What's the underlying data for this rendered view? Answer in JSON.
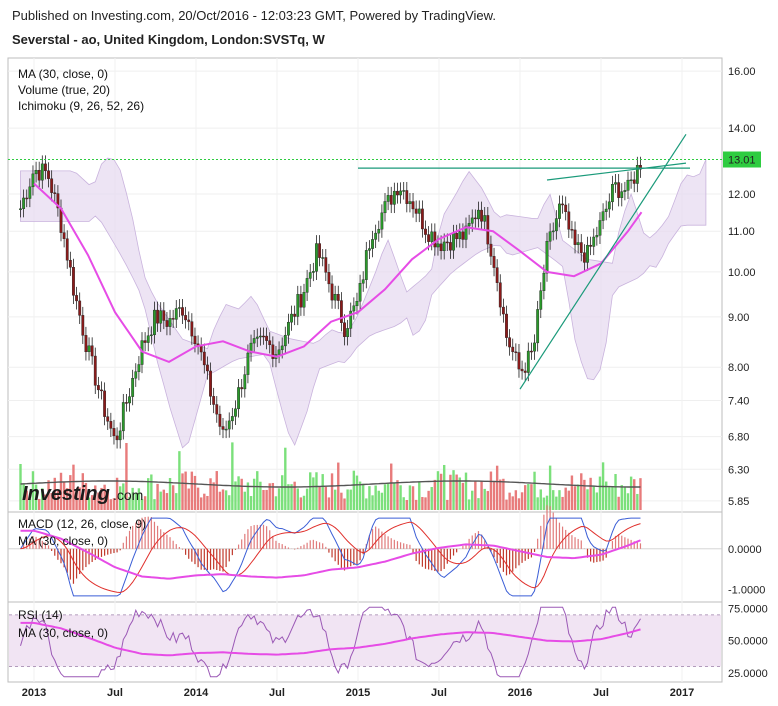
{
  "header": {
    "published": "Published on Investing.com, 20/Oct/2016 - 12:03:23 GMT, Powered by TradingView.",
    "title": "Severstal - ao, United Kingdom, London:SVSTq, W"
  },
  "brand": {
    "name": "Investing",
    "suffix": ".com"
  },
  "chart_data": {
    "type": "line",
    "instrument": "Severstal - ao, United Kingdom, London:SVSTq, W",
    "main_legend": [
      "MA (30, close, 0)",
      "Volume (true, 20)",
      "Ichimoku (9, 26, 52, 26)"
    ],
    "price_axis": {
      "ticks": [
        "16.00",
        "14.00",
        "12.00",
        "11.00",
        "10.00",
        "9.00",
        "8.00",
        "7.40",
        "6.80",
        "6.30",
        "5.85"
      ],
      "ylim": [
        5.7,
        16.5
      ],
      "scale": "log"
    },
    "last_price": {
      "label": "13.01",
      "value": 13.01,
      "color": "#2ecc40"
    },
    "x_axis": {
      "ticks": [
        "2013",
        "Jul",
        "2014",
        "Jul",
        "2015",
        "Jul",
        "2016",
        "Jul",
        "2017"
      ]
    },
    "price_close": [
      {
        "x": "2012-12",
        "y": 11.6
      },
      {
        "x": "2013-01",
        "y": 12.7
      },
      {
        "x": "2013-02",
        "y": 12.6
      },
      {
        "x": "2013-03",
        "y": 11.2
      },
      {
        "x": "2013-04",
        "y": 9.5
      },
      {
        "x": "2013-05",
        "y": 8.3
      },
      {
        "x": "2013-06",
        "y": 7.4
      },
      {
        "x": "2013-07",
        "y": 6.7
      },
      {
        "x": "2013-08",
        "y": 7.5
      },
      {
        "x": "2013-09",
        "y": 8.4
      },
      {
        "x": "2013-10",
        "y": 9.0
      },
      {
        "x": "2013-11",
        "y": 8.9
      },
      {
        "x": "2013-12",
        "y": 9.2
      },
      {
        "x": "2014-01",
        "y": 8.6
      },
      {
        "x": "2014-02",
        "y": 7.6
      },
      {
        "x": "2014-03",
        "y": 6.8
      },
      {
        "x": "2014-04",
        "y": 7.4
      },
      {
        "x": "2014-05",
        "y": 8.3
      },
      {
        "x": "2014-06",
        "y": 8.5
      },
      {
        "x": "2014-07",
        "y": 8.3
      },
      {
        "x": "2014-08",
        "y": 8.9
      },
      {
        "x": "2014-09",
        "y": 9.6
      },
      {
        "x": "2014-10",
        "y": 10.5
      },
      {
        "x": "2014-11",
        "y": 9.6
      },
      {
        "x": "2014-12",
        "y": 8.8
      },
      {
        "x": "2015-01",
        "y": 9.3
      },
      {
        "x": "2015-02",
        "y": 11.0
      },
      {
        "x": "2015-03",
        "y": 11.6
      },
      {
        "x": "2015-04",
        "y": 12.3
      },
      {
        "x": "2015-05",
        "y": 11.8
      },
      {
        "x": "2015-06",
        "y": 11.1
      },
      {
        "x": "2015-07",
        "y": 10.7
      },
      {
        "x": "2015-08",
        "y": 10.8
      },
      {
        "x": "2015-09",
        "y": 10.9
      },
      {
        "x": "2015-10",
        "y": 11.7
      },
      {
        "x": "2015-11",
        "y": 10.4
      },
      {
        "x": "2015-12",
        "y": 8.6
      },
      {
        "x": "2016-01",
        "y": 7.9
      },
      {
        "x": "2016-02",
        "y": 8.3
      },
      {
        "x": "2016-03",
        "y": 10.5
      },
      {
        "x": "2016-04",
        "y": 11.7
      },
      {
        "x": "2016-05",
        "y": 10.6
      },
      {
        "x": "2016-06",
        "y": 10.4
      },
      {
        "x": "2016-07",
        "y": 11.2
      },
      {
        "x": "2016-08",
        "y": 12.2
      },
      {
        "x": "2016-09",
        "y": 12.1
      },
      {
        "x": "2016-10",
        "y": 13.0
      }
    ],
    "ma30": [
      {
        "x": "2013-01",
        "y": 12.3
      },
      {
        "x": "2013-03",
        "y": 11.6
      },
      {
        "x": "2013-05",
        "y": 10.4
      },
      {
        "x": "2013-07",
        "y": 9.1
      },
      {
        "x": "2013-09",
        "y": 8.3
      },
      {
        "x": "2013-11",
        "y": 8.1
      },
      {
        "x": "2014-01",
        "y": 8.4
      },
      {
        "x": "2014-03",
        "y": 8.5
      },
      {
        "x": "2014-05",
        "y": 8.3
      },
      {
        "x": "2014-07",
        "y": 8.2
      },
      {
        "x": "2014-09",
        "y": 8.4
      },
      {
        "x": "2014-11",
        "y": 8.9
      },
      {
        "x": "2015-01",
        "y": 9.1
      },
      {
        "x": "2015-03",
        "y": 9.6
      },
      {
        "x": "2015-05",
        "y": 10.3
      },
      {
        "x": "2015-07",
        "y": 10.8
      },
      {
        "x": "2015-09",
        "y": 11.1
      },
      {
        "x": "2015-11",
        "y": 11.0
      },
      {
        "x": "2016-01",
        "y": 10.5
      },
      {
        "x": "2016-03",
        "y": 10.0
      },
      {
        "x": "2016-05",
        "y": 9.9
      },
      {
        "x": "2016-07",
        "y": 10.2
      },
      {
        "x": "2016-09",
        "y": 11.0
      },
      {
        "x": "2016-10",
        "y": 11.5
      }
    ],
    "macd_panel": {
      "legend": [
        "MACD (12, 26, close, 9)",
        "MA (30, close, 0)"
      ],
      "ticks": [
        "0.0000",
        "-1.0000"
      ],
      "ylim": [
        -1.3,
        0.9
      ]
    },
    "rsi_panel": {
      "legend": [
        "RSI (14)",
        "MA (30, close, 0)"
      ],
      "ticks": [
        "75.0000",
        "50.0000",
        "25.0000"
      ],
      "ylim": [
        18,
        80
      ],
      "band": [
        30,
        70
      ]
    },
    "colors": {
      "up": "#2a9a2a",
      "down": "#8b1a1a",
      "ma": "#e64ce6",
      "ichimoku_cloud": "#e6d9f0",
      "vol_up": "#7be07b",
      "vol_down": "#e87b7b",
      "rsi": "#9b59b6",
      "macd": "#3b5ed6",
      "signal": "#e0302c"
    }
  }
}
